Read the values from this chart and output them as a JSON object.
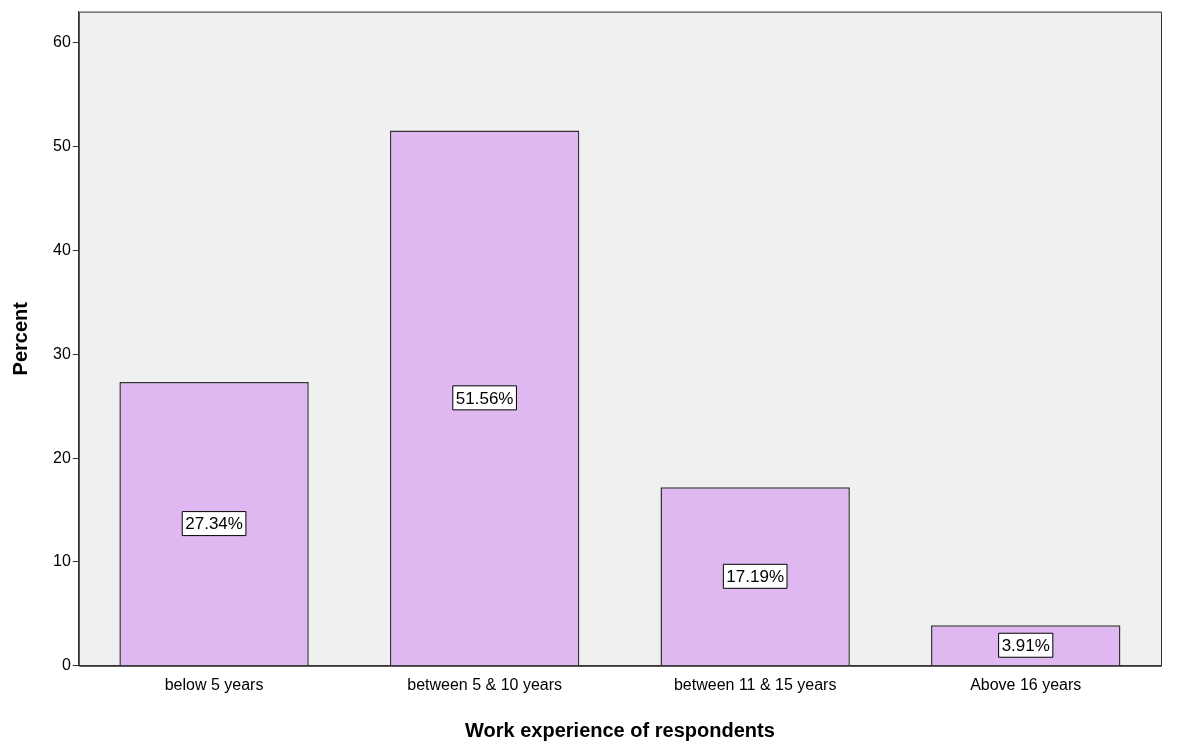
{
  "chart_data": {
    "type": "bar",
    "xlabel": "Work experience of respondents",
    "ylabel": "Percent",
    "categories": [
      "below 5 years",
      "between 5 & 10 years",
      "between 11 & 15 years",
      "Above 16 years"
    ],
    "values": [
      27.34,
      51.56,
      17.19,
      3.91
    ],
    "value_labels": [
      "27.34%",
      "51.56%",
      "17.19%",
      "3.91%"
    ],
    "color": "#dfb8f2",
    "ylim": [
      0,
      63
    ],
    "yticks": [
      0,
      10,
      20,
      30,
      40,
      50,
      60
    ],
    "grid": false,
    "legend": false
  }
}
